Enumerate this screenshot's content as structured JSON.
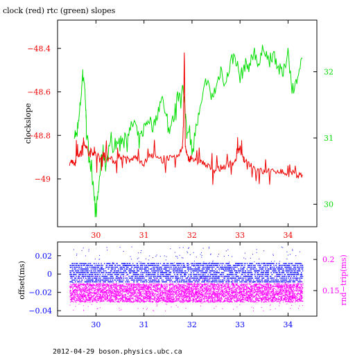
{
  "page": {
    "title": "clock (red) rtc (green) slopes",
    "footer": "2012-04-29  boson.physics.ubc.ca"
  },
  "colors": {
    "red": "#ee0000",
    "green": "#00dd00",
    "blue": "#0000ff",
    "magenta": "#ff00ff",
    "black": "#000000"
  },
  "chart_data": [
    {
      "type": "line",
      "title": "clock (red) rtc (green) slopes",
      "xlabel": "",
      "ylabel": "clockslope",
      "y2label": "",
      "xlim": [
        29.2,
        34.6
      ],
      "ylim": [
        -49.22,
        -48.27
      ],
      "y2lim": [
        29.66,
        32.78
      ],
      "x_ticks": [
        30,
        31,
        32,
        33,
        34
      ],
      "y_ticks": [
        -48.4,
        -48.6,
        -48.8,
        -49
      ],
      "y_tick_labels": [
        "−48.4",
        "−48.6",
        "−48.8",
        "−49"
      ],
      "y2_ticks": [
        32,
        31,
        30
      ],
      "series": [
        {
          "name": "clock",
          "axis": "left",
          "color": "#ee0000",
          "x": [
            29.45,
            29.5,
            29.55,
            29.6,
            29.65,
            29.7,
            29.72,
            29.75,
            29.8,
            29.85,
            29.9,
            29.95,
            30.0,
            30.05,
            30.1,
            30.15,
            30.2,
            30.3,
            30.4,
            30.5,
            30.6,
            30.7,
            30.8,
            30.9,
            31.0,
            31.1,
            31.2,
            31.3,
            31.4,
            31.5,
            31.6,
            31.7,
            31.75,
            31.8,
            31.82,
            31.84,
            31.86,
            31.88,
            31.9,
            31.95,
            32.0,
            32.1,
            32.2,
            32.3,
            32.4,
            32.5,
            32.6,
            32.7,
            32.8,
            32.9,
            32.95,
            33.0,
            33.05,
            33.1,
            33.2,
            33.3,
            33.4,
            33.5,
            33.6,
            33.7,
            33.8,
            33.9,
            34.0,
            34.1,
            34.2,
            34.3
          ],
          "y": [
            -48.93,
            -48.92,
            -48.94,
            -48.9,
            -48.88,
            -48.87,
            -48.84,
            -48.83,
            -48.85,
            -48.89,
            -48.87,
            -48.88,
            -48.89,
            -48.9,
            -48.91,
            -48.88,
            -48.9,
            -48.91,
            -48.92,
            -48.91,
            -48.9,
            -48.92,
            -48.9,
            -48.91,
            -48.93,
            -48.9,
            -48.89,
            -48.91,
            -48.92,
            -48.9,
            -48.91,
            -48.9,
            -48.88,
            -48.85,
            -48.75,
            -48.4,
            -48.85,
            -48.87,
            -48.9,
            -48.91,
            -48.9,
            -48.93,
            -48.92,
            -48.94,
            -48.95,
            -48.96,
            -48.95,
            -48.94,
            -48.93,
            -48.92,
            -48.88,
            -48.86,
            -48.9,
            -48.92,
            -48.93,
            -48.95,
            -48.96,
            -48.97,
            -48.96,
            -48.97,
            -48.96,
            -48.97,
            -48.98,
            -48.97,
            -48.99,
            -48.98
          ]
        },
        {
          "name": "rtc",
          "axis": "right",
          "color": "#00dd00",
          "x": [
            29.55,
            29.6,
            29.65,
            29.7,
            29.72,
            29.75,
            29.78,
            29.8,
            29.85,
            29.9,
            29.95,
            30.0,
            30.05,
            30.1,
            30.15,
            30.2,
            30.3,
            30.4,
            30.5,
            30.6,
            30.7,
            30.8,
            30.9,
            31.0,
            31.1,
            31.2,
            31.3,
            31.4,
            31.5,
            31.6,
            31.7,
            31.8,
            31.85,
            31.9,
            32.0,
            32.1,
            32.2,
            32.3,
            32.4,
            32.5,
            32.6,
            32.7,
            32.8,
            32.9,
            33.0,
            33.1,
            33.2,
            33.3,
            33.4,
            33.5,
            33.6,
            33.7,
            33.8,
            33.9,
            34.0,
            34.1,
            34.2,
            34.3
          ],
          "y": [
            31.1,
            31.0,
            31.3,
            31.75,
            31.95,
            31.9,
            31.6,
            31.1,
            30.8,
            30.5,
            30.3,
            29.85,
            30.2,
            30.6,
            30.8,
            30.6,
            30.85,
            30.9,
            30.95,
            31.05,
            31.1,
            31.25,
            30.95,
            31.15,
            31.3,
            31.15,
            31.45,
            31.6,
            31.1,
            31.25,
            31.6,
            31.8,
            31.45,
            31.1,
            30.85,
            31.2,
            31.5,
            31.9,
            31.6,
            31.75,
            32.05,
            31.8,
            32.15,
            32.25,
            31.9,
            32.1,
            32.1,
            32.3,
            32.1,
            32.4,
            32.15,
            32.3,
            32.05,
            31.95,
            32.35,
            31.55,
            32.0,
            32.2
          ]
        }
      ]
    },
    {
      "type": "scatter",
      "xlabel": "",
      "ylabel": "offset(ms)",
      "y2label": "rnd−trip(ms)",
      "xlim": [
        29.2,
        34.6
      ],
      "ylim": [
        -0.046,
        0.035
      ],
      "y2lim": [
        0.109,
        0.228
      ],
      "x_ticks": [
        30,
        31,
        32,
        33,
        34
      ],
      "y_ticks": [
        0.02,
        0,
        -0.02,
        -0.04
      ],
      "y_tick_labels": [
        "0.02",
        "0",
        "−0.02",
        "−0.04"
      ],
      "y2_ticks": [
        0.2,
        0.15
      ],
      "series": [
        {
          "name": "offset",
          "axis": "left",
          "color": "#0000ff",
          "x_range": [
            29.45,
            34.3
          ],
          "y_center": 0.0,
          "y_band": [
            -0.008,
            0.012
          ],
          "y_outliers": [
            -0.01,
            0.03
          ]
        },
        {
          "name": "rnd-trip",
          "axis": "right",
          "color": "#ff00ff",
          "x_range": [
            29.45,
            34.3
          ],
          "y_center": 0.147,
          "y_band": [
            0.132,
            0.162
          ],
          "y_outliers": [
            0.118,
            0.175
          ]
        }
      ]
    }
  ]
}
